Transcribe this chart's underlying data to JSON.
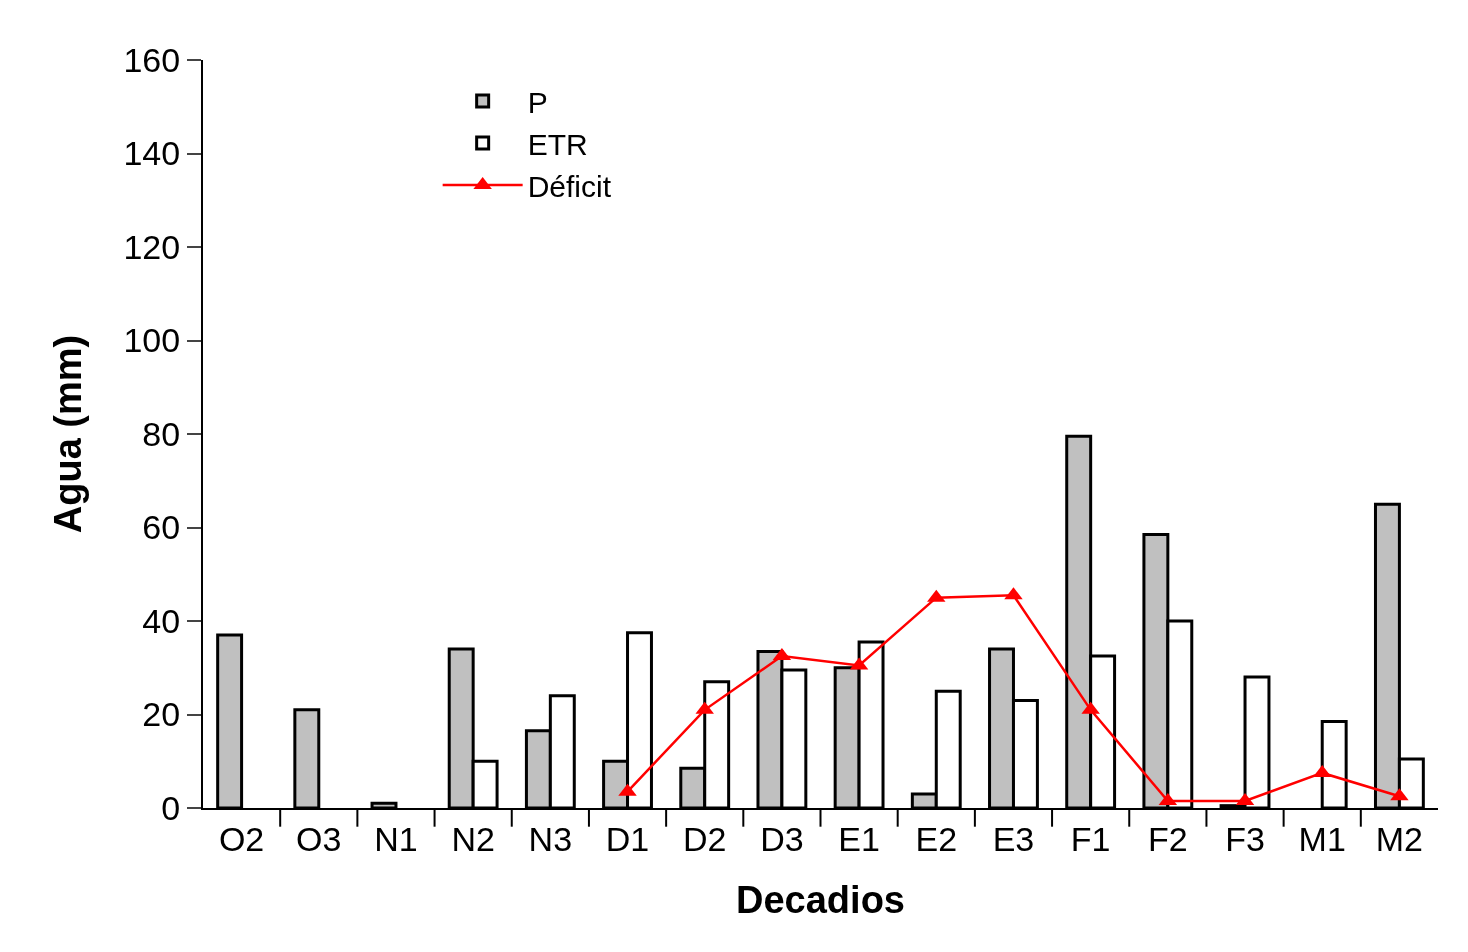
{
  "chart_data": {
    "type": "bar",
    "xlabel": "Decadios",
    "ylabel": "Agua (mm)",
    "categories": [
      "O2",
      "O3",
      "N1",
      "N2",
      "N3",
      "D1",
      "D2",
      "D3",
      "E1",
      "E2",
      "E3",
      "F1",
      "F2",
      "F3",
      "M1",
      "M2"
    ],
    "series": [
      {
        "name": "P",
        "color": "#c0c0c0",
        "values": [
          37,
          21,
          1,
          34,
          16.5,
          10,
          8.5,
          33.5,
          30,
          3,
          34,
          79.5,
          58.5,
          0.5,
          null,
          65
        ]
      },
      {
        "name": "ETR",
        "color": "#ffffff",
        "values": [
          null,
          null,
          null,
          10,
          24,
          37.5,
          27,
          29.5,
          35.5,
          25,
          23,
          32.5,
          40,
          28,
          18.5,
          10.5
        ]
      },
      {
        "name": "Déficit",
        "type": "line",
        "color": "#ff0000",
        "marker": "triangle",
        "values": [
          null,
          null,
          null,
          null,
          null,
          3.5,
          21,
          32.5,
          30.5,
          45,
          45.5,
          21,
          1.5,
          1.5,
          7.5,
          2.5
        ]
      }
    ],
    "ylim": [
      0,
      160
    ],
    "yticks": [
      0,
      20,
      40,
      60,
      80,
      100,
      120,
      140,
      160
    ],
    "grid": false,
    "legend": "top left"
  }
}
